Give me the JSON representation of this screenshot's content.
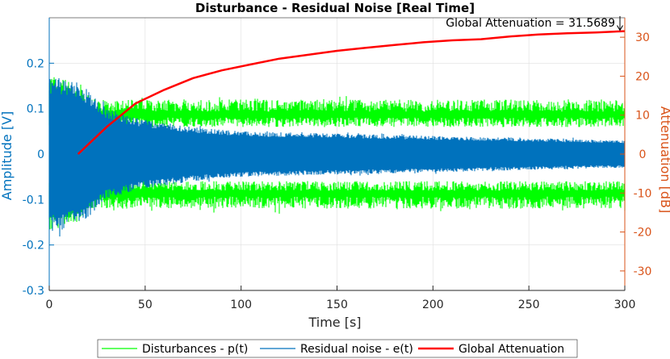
{
  "chart_data": {
    "type": "line",
    "title": "Disturbance - Residual Noise [Real Time]",
    "xlabel": "Time [s]",
    "ylabel_left": "Amplitude [V]",
    "ylabel_right": "Attenuation [dB]",
    "xlim": [
      0,
      300
    ],
    "ylim_left": [
      -0.3,
      0.3
    ],
    "ylim_right": [
      -35,
      35
    ],
    "x_ticks": [
      "0",
      "50",
      "100",
      "150",
      "200",
      "250",
      "300"
    ],
    "y_left_ticks": [
      "-0.3",
      "-0.2",
      "-0.1",
      "0",
      "0.1",
      "0.2"
    ],
    "y_right_ticks": [
      "-30",
      "-20",
      "-10",
      "0",
      "10",
      "20",
      "30"
    ],
    "grid": true,
    "legend_position": "bottom",
    "annotation": "Global Attenuation = 31.5689",
    "colors": {
      "disturbance": "#00ff00",
      "residual": "#0072bd",
      "attenuation": "#ff0000",
      "left_axis": "#0072bd",
      "right_axis": "#d95319"
    },
    "series": [
      {
        "name": "Disturbances - p(t)",
        "axis": "left",
        "style": "band",
        "x": [
          0,
          5,
          10,
          15,
          20,
          25,
          30,
          50,
          100,
          150,
          200,
          250,
          300
        ],
        "envelope": [
          0.17,
          0.17,
          0.16,
          0.15,
          0.13,
          0.12,
          0.12,
          0.12,
          0.12,
          0.12,
          0.12,
          0.12,
          0.12
        ],
        "inner": [
          0.06,
          0.06,
          0.06,
          0.06,
          0.07,
          0.07,
          0.07,
          0.07,
          0.07,
          0.07,
          0.07,
          0.07,
          0.07
        ]
      },
      {
        "name": "Residual noise - e(t)",
        "axis": "left",
        "style": "band",
        "x": [
          0,
          5,
          10,
          15,
          20,
          25,
          30,
          40,
          50,
          75,
          100,
          150,
          200,
          250,
          300
        ],
        "envelope": [
          0.17,
          0.17,
          0.16,
          0.15,
          0.14,
          0.12,
          0.1,
          0.085,
          0.075,
          0.06,
          0.05,
          0.045,
          0.04,
          0.035,
          0.03
        ],
        "inner": [
          0.0,
          0.0,
          0.0,
          0.0,
          0.0,
          0.0,
          0.0,
          0.0,
          0.0,
          0.0,
          0.0,
          0.0,
          0.0,
          0.0,
          0.0
        ]
      },
      {
        "name": "Global Attenuation",
        "axis": "right",
        "style": "line",
        "x": [
          15,
          30,
          45,
          60,
          75,
          90,
          105,
          120,
          135,
          150,
          165,
          180,
          195,
          210,
          225,
          240,
          255,
          270,
          285,
          300
        ],
        "values": [
          0,
          7,
          13,
          16.5,
          19.5,
          21.5,
          23,
          24.5,
          25.5,
          26.5,
          27.3,
          28,
          28.7,
          29.2,
          29.5,
          30.2,
          30.7,
          31.0,
          31.2,
          31.57
        ]
      }
    ]
  }
}
